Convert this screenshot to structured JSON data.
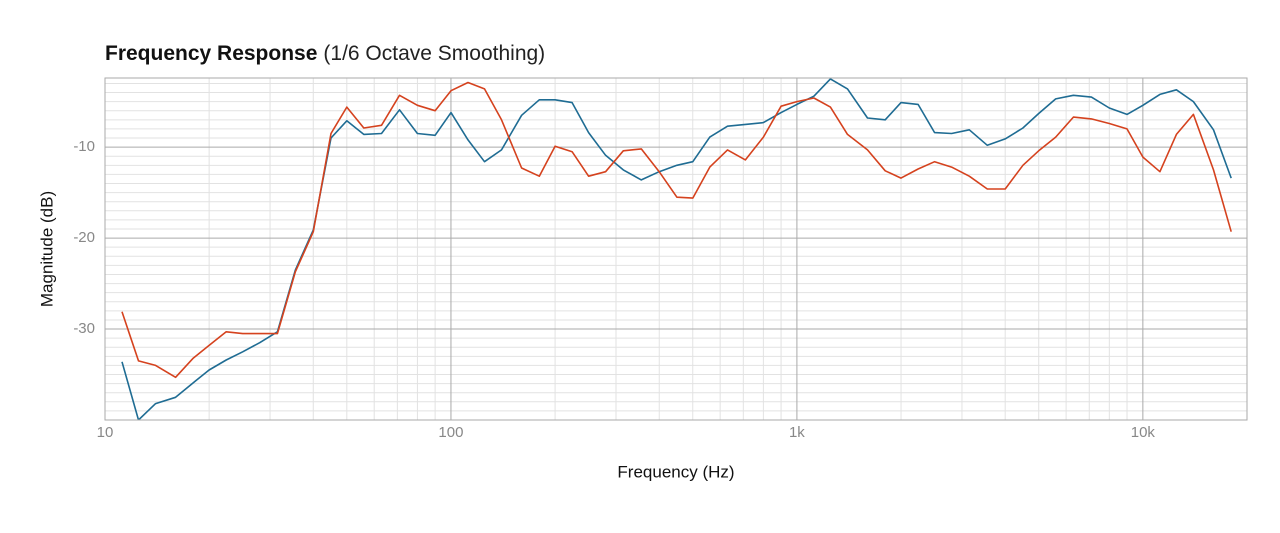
{
  "chart_data": {
    "type": "line",
    "title": "Frequency Response",
    "title_note": "(1/6 Octave Smoothing)",
    "x_label": "Frequency (Hz)",
    "y_label": "Magnitude (dB)",
    "x_scale": "log",
    "grid": true,
    "xlim": [
      10,
      20000
    ],
    "ylim": [
      -40,
      -2.4
    ],
    "xticks": [
      10,
      100,
      {
        "value": 1000,
        "label": "1k"
      },
      {
        "value": 10000,
        "label": "10k"
      }
    ],
    "yticks": [
      -30,
      -20,
      -10
    ],
    "xminor": [
      20,
      30,
      40,
      50,
      60,
      70,
      80,
      90,
      200,
      300,
      400,
      500,
      600,
      700,
      800,
      900,
      2000,
      3000,
      4000,
      5000,
      6000,
      7000,
      8000,
      9000
    ],
    "yminor": [
      -39,
      -38,
      -37,
      -36,
      -35,
      -34,
      -33,
      -32,
      -31,
      -29,
      -28,
      -27,
      -26,
      -25,
      -24,
      -23,
      -22,
      -21,
      -19,
      -18,
      -17,
      -16,
      -15,
      -14,
      -13,
      -12,
      -11,
      -9,
      -8,
      -7,
      -6,
      -5,
      -4,
      -3
    ],
    "x": [
      11.2,
      12.5,
      14,
      16,
      18,
      20,
      22.4,
      25,
      28,
      31.5,
      35.5,
      40,
      45,
      50,
      56,
      63,
      71,
      80,
      90,
      100,
      112,
      125,
      140,
      160,
      180,
      200,
      224,
      250,
      280,
      315,
      355,
      400,
      450,
      500,
      560,
      630,
      710,
      800,
      900,
      1000,
      1120,
      1250,
      1400,
      1600,
      1800,
      2000,
      2240,
      2500,
      2800,
      3150,
      3550,
      4000,
      4500,
      5000,
      5600,
      6300,
      7100,
      8000,
      9000,
      10000,
      11200,
      12500,
      14000,
      16000,
      18000
    ],
    "series": [
      {
        "color": "#1f6c93",
        "values": [
          -33.6,
          -40,
          -38.2,
          -37.5,
          -35.9,
          -34.5,
          -33.4,
          -32.5,
          -31.5,
          -30.3,
          -23.5,
          -19.1,
          -9.0,
          -7.1,
          -8.6,
          -8.5,
          -5.9,
          -8.5,
          -8.7,
          -6.2,
          -9.2,
          -11.6,
          -10.3,
          -6.5,
          -4.8,
          -4.8,
          -5.1,
          -8.4,
          -10.9,
          -12.5,
          -13.6,
          -12.7,
          -12.0,
          -11.6,
          -8.9,
          -7.7,
          -7.5,
          -7.3,
          -6.2,
          -5.3,
          -4.4,
          -2.5,
          -3.6,
          -6.8,
          -7.0,
          -5.1,
          -5.3,
          -8.4,
          -8.5,
          -8.1,
          -9.8,
          -9.1,
          -7.9,
          -6.3,
          -4.7,
          -4.3,
          -4.5,
          -5.7,
          -6.4,
          -5.4,
          -4.2,
          -3.7,
          -5.0,
          -8.1,
          -13.4
        ]
      },
      {
        "color": "#d5421e",
        "values": [
          -28.1,
          -33.5,
          -34.0,
          -35.3,
          -33.2,
          -31.8,
          -30.3,
          -30.5,
          -30.5,
          -30.5,
          -23.7,
          -19.3,
          -8.5,
          -5.6,
          -7.9,
          -7.6,
          -4.3,
          -5.4,
          -6.0,
          -3.8,
          -2.9,
          -3.6,
          -7.0,
          -12.3,
          -13.2,
          -9.9,
          -10.5,
          -13.2,
          -12.7,
          -10.4,
          -10.2,
          -12.7,
          -15.5,
          -15.6,
          -12.2,
          -10.3,
          -11.4,
          -8.9,
          -5.5,
          -5.0,
          -4.6,
          -5.6,
          -8.6,
          -10.3,
          -12.6,
          -13.4,
          -12.4,
          -11.6,
          -12.2,
          -13.2,
          -14.6,
          -14.6,
          -12.0,
          -10.4,
          -8.9,
          -6.7,
          -6.9,
          -7.4,
          -8.0,
          -11.1,
          -12.7,
          -8.6,
          -6.4,
          -12.5,
          -19.3
        ]
      }
    ]
  }
}
